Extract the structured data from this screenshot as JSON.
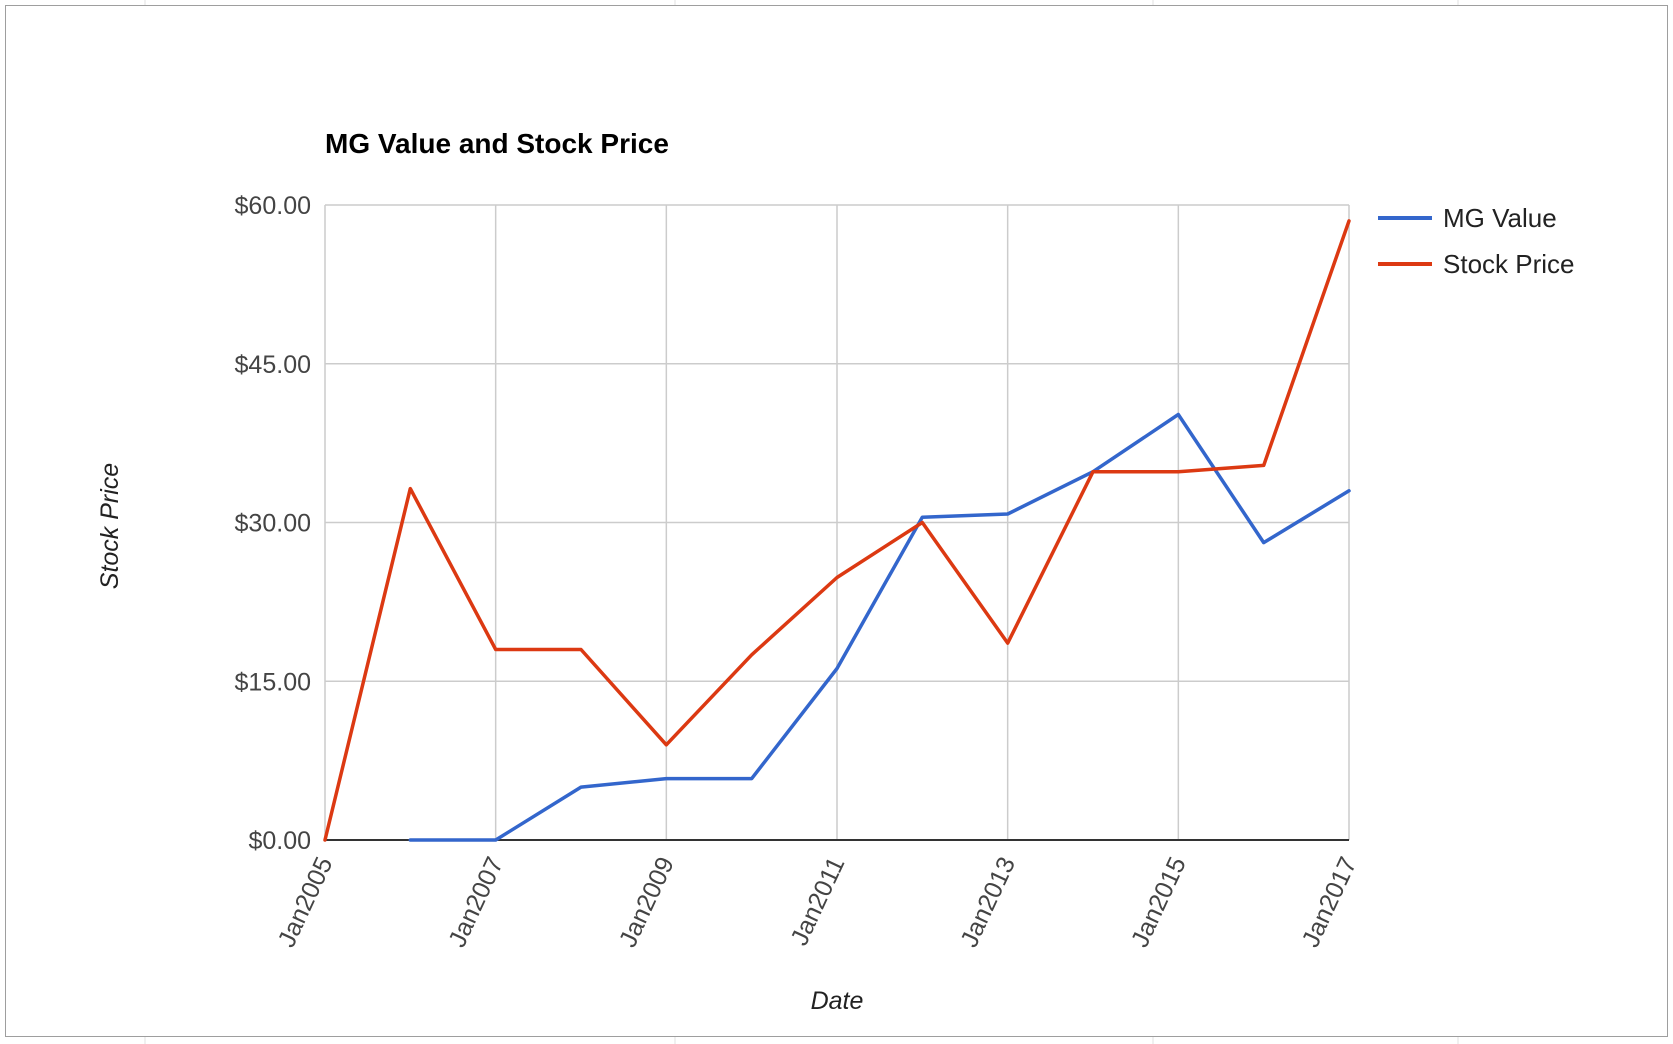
{
  "chart_data": {
    "type": "line",
    "title": "MG Value and Stock Price",
    "xlabel": "Date",
    "ylabel": "Stock Price",
    "x": [
      "2005-01",
      "2006-01",
      "2007-01",
      "2008-01",
      "2009-01",
      "2010-01",
      "2011-01",
      "2012-01",
      "2013-01",
      "2014-01",
      "2015-01",
      "2016-01",
      "2017-01"
    ],
    "x_range": [
      "2005-01",
      "2017-01"
    ],
    "x_ticks": [
      "Jan2005",
      "Jan2007",
      "Jan2009",
      "Jan2011",
      "Jan2013",
      "Jan2015",
      "Jan2017"
    ],
    "y_ticks": [
      "$0.00",
      "$15.00",
      "$30.00",
      "$45.00",
      "$60.00"
    ],
    "ylim": [
      0,
      60
    ],
    "y_tick_values": [
      0,
      15,
      30,
      45,
      60
    ],
    "grid": true,
    "legend_position": "right",
    "series": [
      {
        "name": "MG Value",
        "color": "#3366cc",
        "values": [
          null,
          0,
          0,
          5.0,
          5.8,
          5.8,
          16.2,
          30.5,
          30.8,
          34.8,
          40.2,
          28.1,
          33.0
        ]
      },
      {
        "name": "Stock Price",
        "color": "#dc3912",
        "values": [
          0,
          33.2,
          18.0,
          18.0,
          9.0,
          17.5,
          24.8,
          30.0,
          18.6,
          34.8,
          34.8,
          35.4,
          58.5
        ]
      }
    ]
  }
}
